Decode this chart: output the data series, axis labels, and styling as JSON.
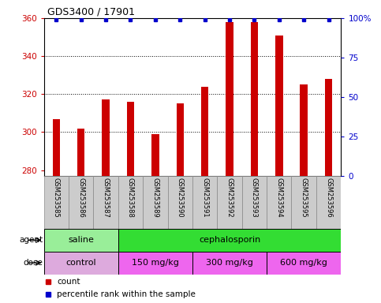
{
  "title": "GDS3400 / 17901",
  "samples": [
    "GSM253585",
    "GSM253586",
    "GSM253587",
    "GSM253588",
    "GSM253589",
    "GSM253590",
    "GSM253591",
    "GSM253592",
    "GSM253593",
    "GSM253594",
    "GSM253595",
    "GSM253596"
  ],
  "bar_values": [
    307,
    302,
    317,
    316,
    299,
    315,
    324,
    358,
    358,
    351,
    325,
    328
  ],
  "bar_color": "#cc0000",
  "dot_color": "#0000cc",
  "ymin": 277,
  "ymax": 360,
  "yticks": [
    280,
    300,
    320,
    340,
    360
  ],
  "right_yticks": [
    0,
    25,
    50,
    75,
    100
  ],
  "right_ytick_labels": [
    "0",
    "25",
    "50",
    "75",
    "100%"
  ],
  "agent_groups": [
    {
      "label": "saline",
      "start": 0,
      "end": 3,
      "color": "#99ee99"
    },
    {
      "label": "cephalosporin",
      "start": 3,
      "end": 12,
      "color": "#33dd33"
    }
  ],
  "dose_groups": [
    {
      "label": "control",
      "start": 0,
      "end": 3,
      "color": "#ddaadd"
    },
    {
      "label": "150 mg/kg",
      "start": 3,
      "end": 6,
      "color": "#ee66ee"
    },
    {
      "label": "300 mg/kg",
      "start": 6,
      "end": 9,
      "color": "#ee66ee"
    },
    {
      "label": "600 mg/kg",
      "start": 9,
      "end": 12,
      "color": "#ee66ee"
    }
  ],
  "legend_count_color": "#cc0000",
  "legend_dot_color": "#0000cc",
  "bg_color": "#ffffff",
  "bar_width": 0.3,
  "sample_label_bg": "#cccccc",
  "cell_edge_color": "#888888"
}
